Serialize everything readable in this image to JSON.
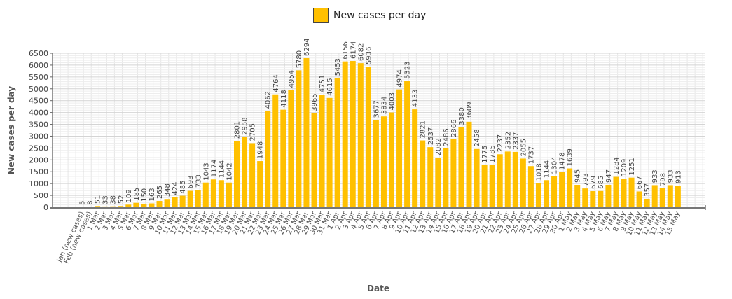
{
  "chart_data": {
    "type": "bar",
    "title": "",
    "xlabel": "Date",
    "ylabel": "New cases per day",
    "ylim": [
      0,
      6500
    ],
    "yticks": [
      0,
      500,
      1000,
      1500,
      2000,
      2500,
      3000,
      3500,
      4000,
      4500,
      5000,
      5500,
      6000,
      6500
    ],
    "grid": true,
    "legend": "top-center",
    "colors": {
      "bar": "#FFC000"
    },
    "categories": [
      "Jan (new cases)",
      "Feb (new cases)",
      "1 Mar",
      "2 Mar",
      "3 Mar",
      "4 Mar",
      "5 Mar",
      "6 Mar",
      "7 Mar",
      "8 Mar",
      "9 Mar",
      "10 Mar",
      "11 Mar",
      "12 Mar",
      "13 Mar",
      "14 Mar",
      "15 Mar",
      "16 Mar",
      "17 Mar",
      "18 Mar",
      "19 Mar",
      "20 Mar",
      "21 Mar",
      "22 Mar",
      "23 Mar",
      "24 Mar",
      "25 Mar",
      "26 Mar",
      "27 Mar",
      "28 Mar",
      "29 Mar",
      "30 Mar",
      "31 Mar",
      "1 Apr",
      "2 Apr",
      "3 Apr",
      "4 Apr",
      "5 Apr",
      "6 Apr",
      "7 Apr",
      "8 Apr",
      "9 Apr",
      "10 Apr",
      "11 Apr",
      "12 Apr",
      "13 Apr",
      "14 Apr",
      "15 Apr",
      "16 Apr",
      "17 Apr",
      "18 Apr",
      "19 Apr",
      "20 Apr",
      "21 Apr",
      "22 Apr",
      "23 Apr",
      "24 Apr",
      "25 Apr",
      "26 Apr",
      "27 Apr",
      "28 Apr",
      "29 Apr",
      "30 Apr",
      "1 May",
      "2 May",
      "3 May",
      "4 May",
      "5 May",
      "6 May",
      "7 May",
      "8 May",
      "9 May",
      "10 May",
      "11 May",
      "12 May",
      "13 May",
      "14 May",
      "15 May"
    ],
    "series": [
      {
        "name": "New cases per day",
        "values": [
          5,
          8,
          51,
          33,
          38,
          52,
          109,
          185,
          150,
          163,
          265,
          348,
          424,
          485,
          693,
          733,
          1043,
          1174,
          1144,
          1042,
          2801,
          2958,
          2705,
          1948,
          4062,
          4764,
          4118,
          4954,
          5780,
          6294,
          3965,
          4751,
          4615,
          5453,
          6156,
          6174,
          6082,
          5936,
          3677,
          3834,
          4003,
          4974,
          5323,
          4133,
          2821,
          2537,
          2082,
          2486,
          2866,
          3380,
          3609,
          2458,
          1775,
          1785,
          2237,
          2352,
          2337,
          2055,
          1737,
          1018,
          1144,
          1304,
          1478,
          1639,
          945,
          793,
          679,
          685,
          947,
          1284,
          1209,
          1251,
          667,
          357,
          933,
          798,
          933,
          913
        ]
      }
    ]
  }
}
